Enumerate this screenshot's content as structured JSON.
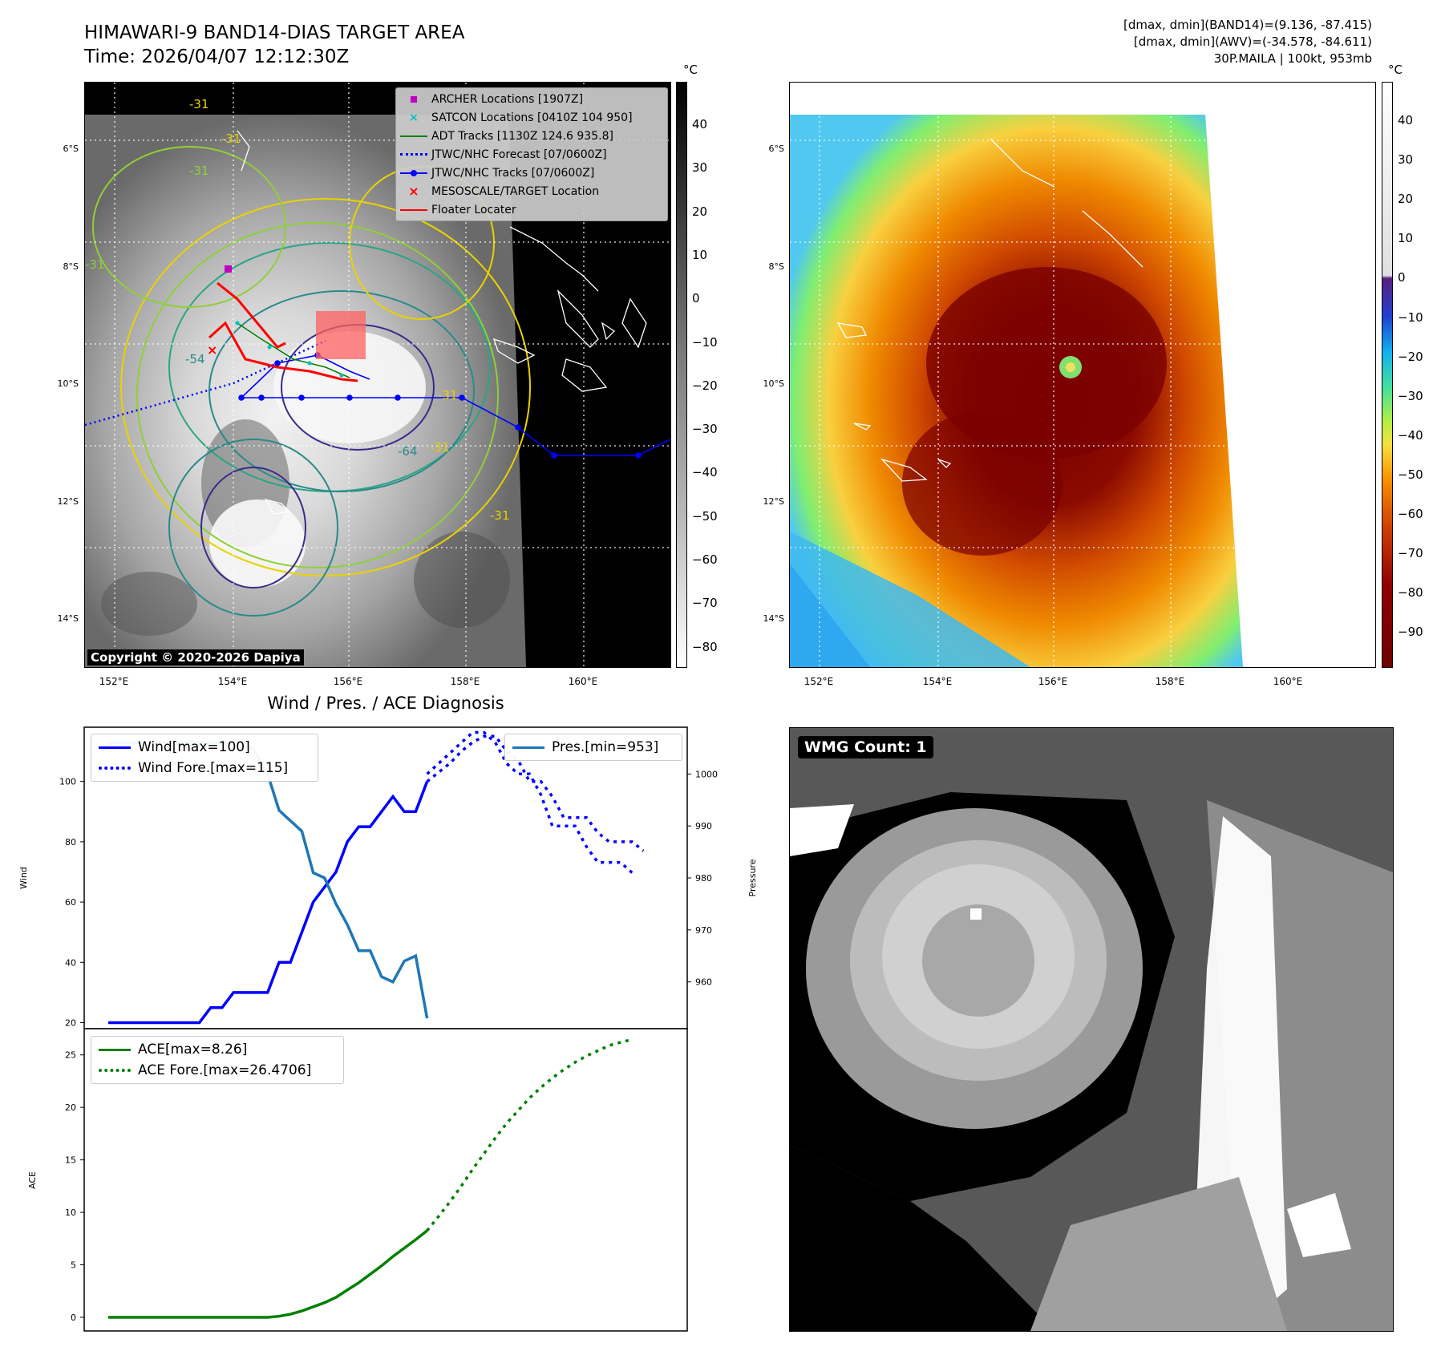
{
  "header": {
    "title_line1": "HIMAWARI-9 BAND14-DIAS TARGET AREA",
    "title_line2": "Time: 2026/04/07 12:12:30Z",
    "info_line1": "[dmax, dmin](BAND14)=(9.136, -87.415)",
    "info_line2": "[dmax, dmin](AWV)=(-34.578, -84.611)",
    "info_line3": "30P.MAILA | 100kt, 953mb"
  },
  "map": {
    "lat_labels": [
      "6°S",
      "8°S",
      "10°S",
      "12°S",
      "14°S"
    ],
    "lon_labels": [
      "152°E",
      "154°E",
      "156°E",
      "158°E",
      "160°E"
    ],
    "contour_labels": [
      "-31",
      "-31",
      "-31",
      "-31",
      "-54",
      "-64",
      "-31",
      "-31",
      "-31"
    ],
    "copyright": "Copyright © 2020-2026 Dapiya",
    "legend": [
      {
        "label": "ARCHER Locations [1907Z]",
        "color": "#c000c0"
      },
      {
        "label": "SATCON Locations [0410Z 104 950]",
        "color": "#00c0c0"
      },
      {
        "label": "ADT Tracks [1130Z 124.6 935.8]",
        "color": "#008000"
      },
      {
        "label": "JTWC/NHC Forecast [07/0600Z]",
        "color": "#0000ff"
      },
      {
        "label": "JTWC/NHC Tracks [07/0600Z]",
        "color": "#0000ff"
      },
      {
        "label": "MESOSCALE/TARGET Location",
        "color": "#ff0000"
      },
      {
        "label": "Floater Locater",
        "color": "#ff0000"
      }
    ]
  },
  "colorbar_gray": {
    "unit": "°C",
    "ticks": [
      "40",
      "30",
      "20",
      "10",
      "0",
      "−10",
      "−20",
      "−30",
      "−40",
      "−50",
      "−60",
      "−70",
      "−80"
    ]
  },
  "colorbar_awv": {
    "unit": "°C",
    "ticks": [
      "40",
      "30",
      "20",
      "10",
      "0",
      "−10",
      "−20",
      "−30",
      "−40",
      "−50",
      "−60",
      "−70",
      "−80",
      "−90"
    ]
  },
  "wmg": {
    "label": "WMG Count: 1"
  },
  "chart_data": [
    {
      "type": "line",
      "title": "Wind / Pres. / ACE Diagnosis",
      "ylabel": "Wind",
      "y2label": "Pressure",
      "ylim": [
        18,
        118
      ],
      "y2lim": [
        951,
        1009
      ],
      "yticks": [
        20,
        40,
        60,
        80,
        100
      ],
      "y2ticks": [
        960,
        970,
        980,
        990,
        1000
      ],
      "x_index_range": [
        0,
        48
      ],
      "series": [
        {
          "name": "Wind[max=100]",
          "color": "#0000ff",
          "style": "solid",
          "values": [
            20,
            20,
            20,
            20,
            20,
            20,
            20,
            20,
            20,
            25,
            25,
            30,
            30,
            30,
            30,
            40,
            40,
            50,
            60,
            65,
            70,
            80,
            85,
            85,
            90,
            95,
            90,
            90,
            100
          ]
        },
        {
          "name": "Wind Fore.[max=115]",
          "color": "#0000ff",
          "style": "dotted",
          "x_start": 28,
          "values": [
            100,
            103,
            106,
            110,
            113,
            115,
            115,
            110,
            107,
            100,
            100,
            95,
            88,
            88,
            88,
            83,
            80,
            80,
            80,
            77
          ]
        },
        {
          "name": "Pres.[min=953]",
          "color": "#1f77b4",
          "style": "solid",
          "axis": "right",
          "values": [
            1006,
            1006,
            1006,
            1006,
            1006,
            1006,
            1006,
            1006,
            1006,
            1006,
            1006,
            1006,
            1006,
            1004,
            1000,
            993,
            991,
            989,
            981,
            980,
            975,
            971,
            966,
            966,
            961,
            960,
            964,
            965,
            953
          ]
        },
        {
          "name": "Pres.[min=953] Fore.",
          "color": "#0000ff",
          "style": "dotted",
          "axis": "right",
          "hidden_legend": true,
          "x_start": 28,
          "values": [
            1000,
            1002,
            1004,
            1006,
            1008,
            1008,
            1006,
            1002,
            1000,
            1000,
            996,
            990,
            990,
            990,
            986,
            983,
            983,
            983,
            981
          ]
        }
      ]
    },
    {
      "type": "line",
      "ylabel": "ACE",
      "ylim": [
        -1.3,
        27.5
      ],
      "yticks": [
        0,
        5,
        10,
        15,
        20,
        25
      ],
      "x_index_range": [
        0,
        48
      ],
      "series": [
        {
          "name": "ACE[max=8.26]",
          "color": "#008000",
          "style": "solid",
          "values": [
            0,
            0,
            0,
            0,
            0,
            0,
            0,
            0,
            0,
            0,
            0,
            0,
            0,
            0,
            0,
            0.1,
            0.3,
            0.6,
            1.0,
            1.4,
            1.9,
            2.6,
            3.3,
            4.1,
            4.9,
            5.8,
            6.6,
            7.4,
            8.26
          ]
        },
        {
          "name": "ACE Fore.[max=26.4706]",
          "color": "#008000",
          "style": "dotted",
          "x_start": 28,
          "values": [
            8.26,
            9.6,
            11.0,
            12.5,
            14.1,
            15.6,
            17.1,
            18.5,
            19.7,
            20.9,
            21.9,
            22.8,
            23.6,
            24.3,
            24.9,
            25.4,
            25.9,
            26.2,
            26.4706
          ]
        }
      ]
    }
  ]
}
